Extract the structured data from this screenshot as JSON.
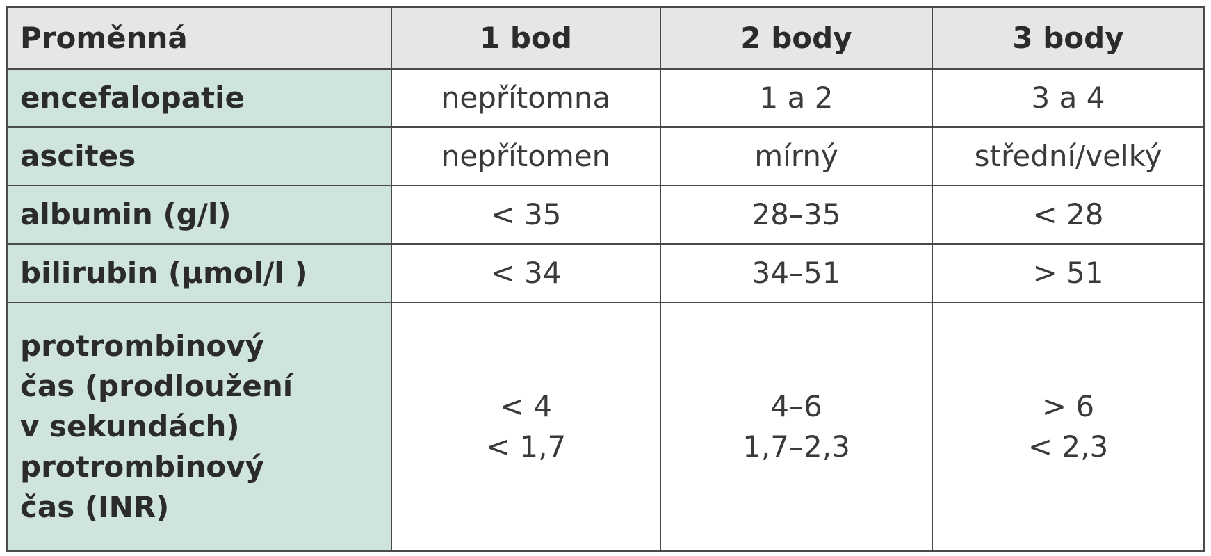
{
  "table": {
    "header": [
      "Proměnná",
      "1 bod",
      "2 body",
      "3 body"
    ],
    "rows": [
      [
        "encefalopatie",
        "nepřítomna",
        "1 a 2",
        "3 a 4"
      ],
      [
        "ascites",
        "nepřítomen",
        "mírný",
        "střední/velký"
      ],
      [
        "albumin (g/l)",
        "< 35",
        "28–35",
        "< 28"
      ],
      [
        "bilirubin (µmol/l )",
        "< 34",
        "34–51",
        "> 51"
      ],
      [
        [
          "protrombinový",
          "čas (prodloužení",
          "v sekundách)",
          "protrombinový",
          "čas (INR)"
        ],
        [
          "< 4",
          "< 1,7"
        ],
        [
          "4–6",
          "1,7–2,3"
        ],
        [
          "> 6",
          "< 2,3"
        ]
      ]
    ]
  }
}
